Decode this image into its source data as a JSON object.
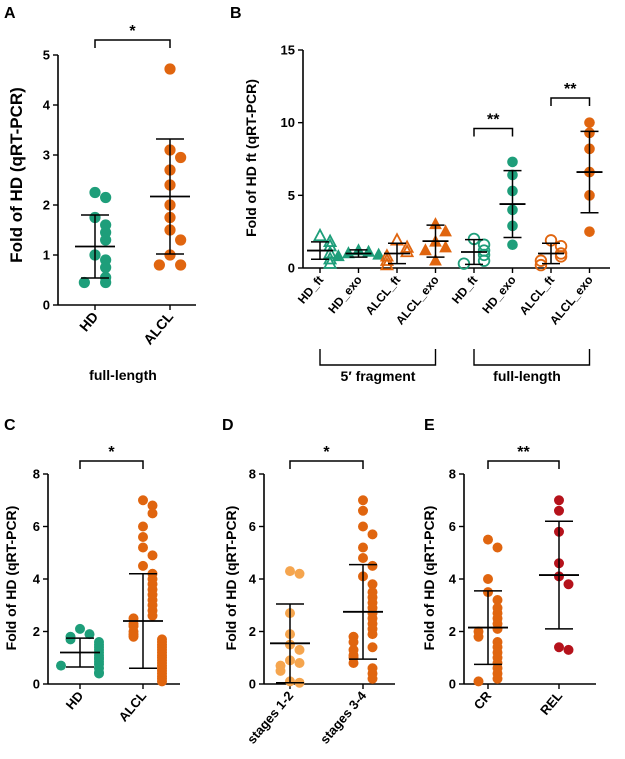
{
  "colors": {
    "teal": "#1e9e7a",
    "orange": "#e0650f",
    "light_orange": "#f5a54e",
    "red": "#b5121b",
    "axis": "#000000"
  },
  "chart_data": [
    {
      "panel": "A",
      "type": "scatter",
      "ylabel": "Fold of HD (qRT-PCR)",
      "ylim": [
        0,
        5
      ],
      "yticks": [
        0,
        1,
        2,
        3,
        4,
        5
      ],
      "categories": [
        "HD",
        "ALCL"
      ],
      "xlabel": "full-length",
      "series": [
        {
          "name": "HD",
          "color": "teal",
          "marker": "circle-filled",
          "mean": 1.17,
          "sd": 0.63,
          "values": [
            2.25,
            2.15,
            1.75,
            1.6,
            1.45,
            1.3,
            1.0,
            0.9,
            0.75,
            0.55,
            0.45,
            0.45
          ]
        },
        {
          "name": "ALCL",
          "color": "orange",
          "marker": "circle-filled",
          "mean": 2.17,
          "sd": 1.15,
          "values": [
            4.72,
            3.1,
            2.95,
            2.7,
            2.4,
            2.0,
            1.75,
            1.5,
            1.3,
            1.0,
            0.8,
            0.8
          ]
        }
      ],
      "significance": [
        {
          "from": 0,
          "to": 1,
          "label": "*"
        }
      ]
    },
    {
      "panel": "B",
      "type": "scatter",
      "ylabel": "Fold of HD ft (qRT-PCR)",
      "ylim": [
        0,
        15
      ],
      "yticks": [
        0,
        5,
        10,
        15
      ],
      "categories": [
        "HD_ft",
        "HD_exo",
        "ALCL_ft",
        "ALCL_exo",
        "HD_ft",
        "HD_exo",
        "ALCL_ft",
        "ALCL_exo"
      ],
      "groups": [
        {
          "label": "5′ fragment",
          "span": [
            0,
            3
          ]
        },
        {
          "label": "full-length",
          "span": [
            4,
            7
          ]
        }
      ],
      "series": [
        {
          "name": "HD_ft",
          "color": "teal",
          "marker": "triangle-open",
          "mean": 1.2,
          "sd": 0.6,
          "values": [
            2.2,
            1.8,
            1.5,
            1.0,
            0.6,
            0.3
          ]
        },
        {
          "name": "HD_exo",
          "color": "teal",
          "marker": "triangle-filled",
          "mean": 1.0,
          "sd": 0.25,
          "values": [
            1.2,
            1.1,
            1.0,
            0.9,
            0.8
          ]
        },
        {
          "name": "ALCL_ft",
          "color": "orange",
          "marker": "triangle-open",
          "mean": 1.0,
          "sd": 0.7,
          "values": [
            1.9,
            1.4,
            1.1,
            0.8,
            0.5,
            0.2
          ]
        },
        {
          "name": "ALCL_exo",
          "color": "orange",
          "marker": "triangle-filled",
          "mean": 1.85,
          "sd": 1.1,
          "values": [
            3.0,
            2.5,
            1.8,
            1.4,
            1.2,
            0.5
          ]
        },
        {
          "name": "HD_ft",
          "color": "teal",
          "marker": "circle-open",
          "mean": 1.1,
          "sd": 0.85,
          "values": [
            2.0,
            1.6,
            1.2,
            0.9,
            0.5,
            0.3
          ]
        },
        {
          "name": "HD_exo",
          "color": "teal",
          "marker": "circle-filled",
          "mean": 4.4,
          "sd": 2.3,
          "values": [
            7.3,
            6.4,
            5.3,
            4.0,
            2.9,
            1.6
          ]
        },
        {
          "name": "ALCL_ft",
          "color": "orange",
          "marker": "circle-open",
          "mean": 1.0,
          "sd": 0.7,
          "values": [
            1.9,
            1.5,
            1.0,
            0.8,
            0.5,
            0.2
          ]
        },
        {
          "name": "ALCL_exo",
          "color": "orange",
          "marker": "circle-filled",
          "mean": 6.6,
          "sd": 2.8,
          "values": [
            10.0,
            9.3,
            8.2,
            6.6,
            5.0,
            2.5
          ]
        }
      ],
      "significance": [
        {
          "from": 4,
          "to": 5,
          "label": "**",
          "y": 9.6
        },
        {
          "from": 6,
          "to": 7,
          "label": "**",
          "y": 11.7
        }
      ]
    },
    {
      "panel": "C",
      "type": "scatter",
      "ylabel": "Fold of HD (qRT-PCR)",
      "ylim": [
        0,
        8
      ],
      "yticks": [
        0,
        2,
        4,
        6,
        8
      ],
      "categories": [
        "HD",
        "ALCL"
      ],
      "series": [
        {
          "name": "HD",
          "color": "teal",
          "marker": "circle-filled",
          "mean": 1.2,
          "sd": 0.55,
          "values": [
            2.1,
            1.9,
            1.8,
            1.7,
            1.6,
            1.5,
            1.4,
            1.3,
            1.2,
            1.1,
            1.0,
            0.95,
            0.85,
            0.75,
            0.7,
            0.6,
            0.45,
            0.4
          ]
        },
        {
          "name": "ALCL",
          "color": "orange",
          "marker": "circle-filled",
          "mean": 2.4,
          "sd": 1.8,
          "values": [
            7.0,
            6.8,
            6.5,
            6.0,
            5.6,
            5.2,
            4.9,
            4.5,
            4.2,
            4.0,
            3.8,
            3.6,
            3.4,
            3.2,
            3.0,
            2.8,
            2.6,
            2.5,
            2.3,
            2.2,
            2.0,
            1.9,
            1.8,
            1.7,
            1.6,
            1.5,
            1.4,
            1.3,
            1.2,
            1.1,
            1.0,
            0.9,
            0.8,
            0.7,
            0.6,
            0.5,
            0.4,
            0.3,
            0.2,
            0.1
          ]
        }
      ],
      "significance": [
        {
          "from": 0,
          "to": 1,
          "label": "*"
        }
      ]
    },
    {
      "panel": "D",
      "type": "scatter",
      "ylabel": "Fold of HD (qRT-PCR)",
      "ylim": [
        0,
        8
      ],
      "yticks": [
        0,
        2,
        4,
        6,
        8
      ],
      "categories": [
        "stages 1-2",
        "stages 3-4"
      ],
      "series": [
        {
          "name": "stages 1-2",
          "color": "light_orange",
          "marker": "circle-filled",
          "mean": 1.55,
          "sd": 1.5,
          "values": [
            4.3,
            4.2,
            2.7,
            1.9,
            1.5,
            1.3,
            0.9,
            0.8,
            0.7,
            0.5,
            0.1,
            0.05
          ]
        },
        {
          "name": "stages 3-4",
          "color": "orange",
          "marker": "circle-filled",
          "mean": 2.75,
          "sd": 1.8,
          "values": [
            7.0,
            6.6,
            6.0,
            5.7,
            5.2,
            4.8,
            4.5,
            4.1,
            3.8,
            3.5,
            3.3,
            3.1,
            2.9,
            2.7,
            2.5,
            2.3,
            2.1,
            1.9,
            1.8,
            1.6,
            1.4,
            1.3,
            1.1,
            1.0,
            0.8,
            0.6,
            0.4,
            0.2
          ]
        }
      ],
      "significance": [
        {
          "from": 0,
          "to": 1,
          "label": "*"
        }
      ]
    },
    {
      "panel": "E",
      "type": "scatter",
      "ylabel": "Fold of HD (qRT-PCR)",
      "ylim": [
        0,
        8
      ],
      "yticks": [
        0,
        2,
        4,
        6,
        8
      ],
      "categories": [
        "CR",
        "REL"
      ],
      "series": [
        {
          "name": "CR",
          "color": "orange",
          "marker": "circle-filled",
          "mean": 2.15,
          "sd": 1.4,
          "values": [
            5.5,
            5.2,
            4.0,
            3.5,
            3.2,
            2.9,
            2.7,
            2.5,
            2.3,
            2.1,
            2.0,
            1.8,
            1.6,
            1.4,
            1.2,
            1.0,
            0.8,
            0.6,
            0.4,
            0.2,
            0.1
          ]
        },
        {
          "name": "REL",
          "color": "red",
          "marker": "circle-filled",
          "mean": 4.15,
          "sd": 2.05,
          "values": [
            7.0,
            6.6,
            5.8,
            4.6,
            4.1,
            3.8,
            1.4,
            1.3
          ]
        }
      ],
      "significance": [
        {
          "from": 0,
          "to": 1,
          "label": "**"
        }
      ]
    }
  ]
}
